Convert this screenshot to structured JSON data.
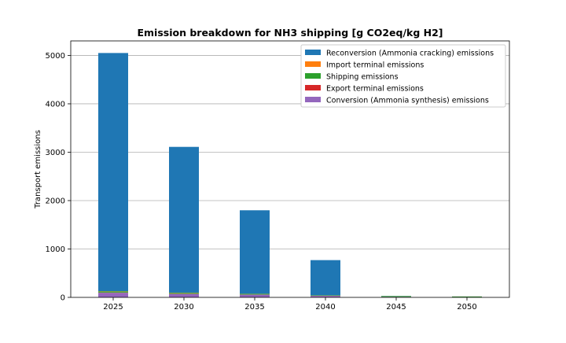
{
  "chart_data": {
    "type": "bar",
    "stacked": true,
    "title": "Emission breakdown for NH3 shipping [g CO2eq/kg H2]",
    "xlabel": "",
    "ylabel": "Transport emissions",
    "categories": [
      "2025",
      "2030",
      "2035",
      "2040",
      "2045",
      "2050"
    ],
    "ylim": [
      0,
      5300
    ],
    "yticks": [
      0,
      1000,
      2000,
      3000,
      4000,
      5000
    ],
    "grid": "horizontal",
    "legend_position": "top-right",
    "series": [
      {
        "name": "Conversion (Ammonia synthesis) emissions",
        "color": "#9467bd",
        "values": [
          95,
          70,
          55,
          30,
          10,
          5
        ]
      },
      {
        "name": "Export terminal emissions",
        "color": "#d62728",
        "values": [
          5,
          4,
          3,
          2,
          1,
          1
        ]
      },
      {
        "name": "Shipping emissions",
        "color": "#2ca02c",
        "values": [
          25,
          20,
          15,
          10,
          15,
          12
        ]
      },
      {
        "name": "Import terminal emissions",
        "color": "#ff7f0e",
        "values": [
          5,
          4,
          3,
          2,
          1,
          1
        ]
      },
      {
        "name": "Reconversion (Ammonia cracking) emissions",
        "color": "#1f77b4",
        "values": [
          4920,
          3012,
          1724,
          726,
          3,
          1
        ]
      }
    ],
    "legend_order": [
      4,
      3,
      2,
      1,
      0
    ]
  }
}
